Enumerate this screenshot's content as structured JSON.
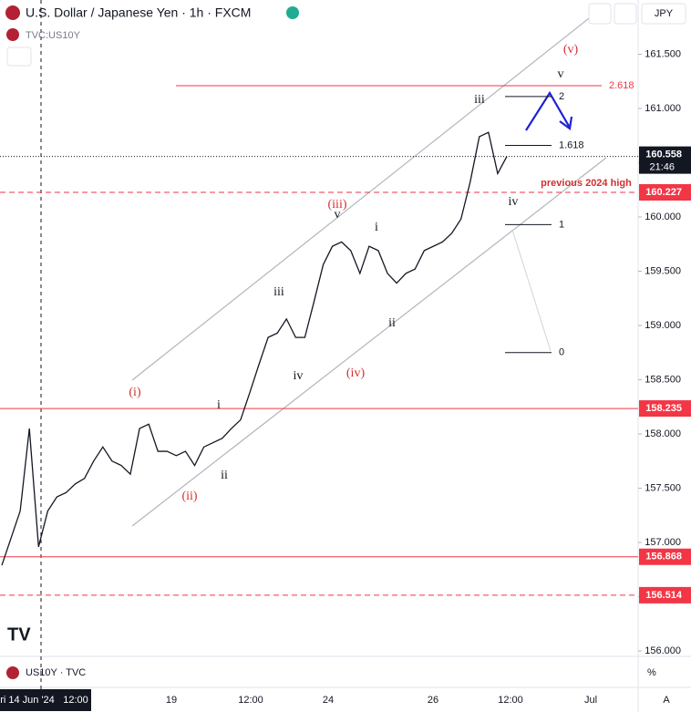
{
  "chart_data": {
    "type": "line",
    "title": "U.S. Dollar / Japanese Yen · 1h · FXCM",
    "compare_symbol": "TVC:US10Y",
    "currency": "JPY",
    "footer_symbol": "US10Y · TVC",
    "footer_unit": "%",
    "footer_mode": "A",
    "countdown": "21:46",
    "color": "#131722",
    "values": [
      156.79,
      157.04,
      157.29,
      158.05,
      156.96,
      157.29,
      157.42,
      157.46,
      157.54,
      157.59,
      157.75,
      157.88,
      157.75,
      157.71,
      157.63,
      158.05,
      158.09,
      157.84,
      157.84,
      157.8,
      157.84,
      157.71,
      157.88,
      157.92,
      157.96,
      158.05,
      158.13,
      158.38,
      158.64,
      158.89,
      158.93,
      159.06,
      158.89,
      158.89,
      159.22,
      159.56,
      159.73,
      159.77,
      159.69,
      159.48,
      159.73,
      159.69,
      159.48,
      159.39,
      159.48,
      159.52,
      159.69,
      159.73,
      159.77,
      159.85,
      159.98,
      160.32,
      160.74,
      160.78,
      160.4,
      160.558
    ],
    "last_price": {
      "value": 160.558,
      "label": "160.558"
    },
    "ylim": [
      155.95,
      162.0
    ],
    "yticks": [
      {
        "value": 161.5,
        "label": "161.500"
      },
      {
        "value": 161,
        "label": "161.000"
      },
      {
        "value": 160.5,
        "label": "160.500"
      },
      {
        "value": 160,
        "label": "160.000"
      },
      {
        "value": 159.5,
        "label": "159.500"
      },
      {
        "value": 159,
        "label": "159.000"
      },
      {
        "value": 158.5,
        "label": "158.500"
      },
      {
        "value": 158,
        "label": "158.000"
      },
      {
        "value": 157.5,
        "label": "157.500"
      },
      {
        "value": 157,
        "label": "157.000"
      },
      {
        "value": 156.5,
        "label": "156.500"
      },
      {
        "value": 156,
        "label": "156.000"
      }
    ],
    "x_labels": [
      "ri 14 Jun '24",
      "12:00",
      "19",
      "12:00",
      "24",
      "26",
      "12:00",
      "Jul"
    ],
    "levels": [
      {
        "value": 160.227,
        "label": "160.227",
        "style": "dashed",
        "color": "#f23645"
      },
      {
        "value": 158.235,
        "label": "158.235",
        "style": "solid",
        "color": "#f23645"
      },
      {
        "value": 156.868,
        "label": "156.868",
        "style": "solid",
        "color": "#f23645"
      },
      {
        "value": 156.514,
        "label": "156.514",
        "style": "dashed",
        "color": "#f23645"
      }
    ],
    "fib_levels": [
      {
        "ratio": {
          "value": 2.618,
          "label": "2.618"
        },
        "price": 161.21,
        "color": "#f23645"
      },
      {
        "ratio": 2,
        "price": 161.11,
        "color": "#131722"
      },
      {
        "ratio": 1.618,
        "price": 160.66,
        "color": "#131722"
      },
      {
        "ratio": 1,
        "price": 159.93,
        "color": "#131722"
      },
      {
        "ratio": 0,
        "price": 158.75,
        "color": "#131722"
      }
    ],
    "annotations": [
      {
        "text": "(v)",
        "color": "#d32f2f"
      },
      {
        "text": "v",
        "color": "#131722"
      },
      {
        "text": "iii",
        "color": "#131722"
      },
      {
        "text": "previous 2024 high",
        "color": "#d32f2f"
      },
      {
        "text": "iv",
        "color": "#131722"
      },
      {
        "text": "(iii)",
        "color": "#d32f2f"
      },
      {
        "text": "v",
        "color": "#131722"
      },
      {
        "text": "i",
        "color": "#131722"
      },
      {
        "text": "iii",
        "color": "#131722"
      },
      {
        "text": "iv",
        "color": "#131722"
      },
      {
        "text": "(iv)",
        "color": "#d32f2f"
      },
      {
        "text": "ii",
        "color": "#131722"
      },
      {
        "text": "(i)",
        "color": "#d32f2f"
      },
      {
        "text": "i",
        "color": "#131722"
      },
      {
        "text": "ii",
        "color": "#131722"
      },
      {
        "text": "(ii)",
        "color": "#d32f2f"
      }
    ]
  }
}
